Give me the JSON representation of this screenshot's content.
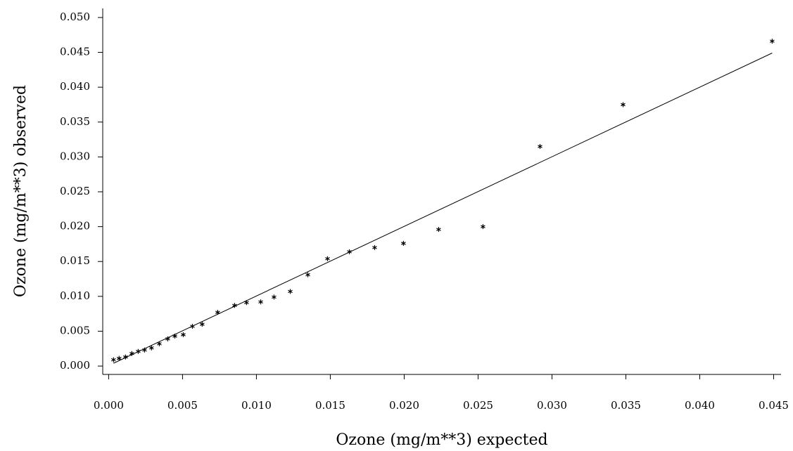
{
  "chart_data": {
    "type": "scatter",
    "x_label": "Ozone (mg/m**3) expected",
    "y_label": "Ozone (mg/m**3) observed",
    "x": [
      0.00033,
      0.00071,
      0.00114,
      0.00157,
      0.002,
      0.00243,
      0.0029,
      0.00343,
      0.004,
      0.00448,
      0.00505,
      0.00567,
      0.00633,
      0.00738,
      0.00852,
      0.00933,
      0.01029,
      0.01119,
      0.01229,
      0.01348,
      0.01481,
      0.01629,
      0.018,
      0.01995,
      0.02233,
      0.02533,
      0.02919,
      0.03481,
      0.0449
    ],
    "values": [
      0.0009,
      0.0011,
      0.0013,
      0.0018,
      0.0021,
      0.0023,
      0.0026,
      0.0032,
      0.0039,
      0.0043,
      0.0045,
      0.0057,
      0.006,
      0.0077,
      0.0087,
      0.0091,
      0.0092,
      0.0099,
      0.0107,
      0.0131,
      0.0154,
      0.0164,
      0.017,
      0.0176,
      0.0196,
      0.02,
      0.0315,
      0.0375,
      0.0466
    ],
    "color": "#000000",
    "reference_line": {
      "x": [
        0.00033,
        0.0449
      ],
      "values": [
        0.0004,
        0.0449
      ]
    },
    "xlim": [
      -0.0004,
      0.0455
    ],
    "ylim": [
      -0.0012,
      0.0513
    ],
    "xticks": [
      {
        "value": 0,
        "label": "0.000"
      },
      {
        "value": 0.005,
        "label": "0.005"
      },
      {
        "value": 0.01,
        "label": "0.010"
      },
      {
        "value": 0.015,
        "label": "0.015"
      },
      {
        "value": 0.02,
        "label": "0.020"
      },
      {
        "value": 0.025,
        "label": "0.025"
      },
      {
        "value": 0.03,
        "label": "0.030"
      },
      {
        "value": 0.035,
        "label": "0.035"
      },
      {
        "value": 0.04,
        "label": "0.040"
      },
      {
        "value": 0.045,
        "label": "0.045"
      }
    ],
    "yticks": [
      {
        "value": 0,
        "label": "0.000"
      },
      {
        "value": 0.005,
        "label": "0.005"
      },
      {
        "value": 0.01,
        "label": "0.010"
      },
      {
        "value": 0.015,
        "label": "0.015"
      },
      {
        "value": 0.02,
        "label": "0.020"
      },
      {
        "value": 0.025,
        "label": "0.025"
      },
      {
        "value": 0.03,
        "label": "0.030"
      },
      {
        "value": 0.035,
        "label": "0.035"
      },
      {
        "value": 0.04,
        "label": "0.040"
      },
      {
        "value": 0.045,
        "label": "0.045"
      },
      {
        "value": 0.05,
        "label": "0.050"
      }
    ],
    "grid": false
  }
}
